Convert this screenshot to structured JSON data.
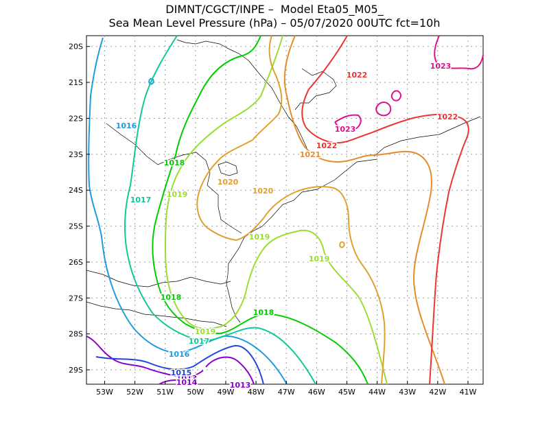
{
  "header": {
    "line1": "DIMNT/CGCT/INPE –  Model Eta05_M05_",
    "line2": "Sea Mean Level Pressure (hPa) – 05/07/2020 00UTC fct=10h"
  },
  "chart_data": {
    "type": "contour",
    "title": "Sea Mean Level Pressure (hPa)",
    "x_axis": {
      "ticks": [
        "53W",
        "52W",
        "51W",
        "50W",
        "49W",
        "48W",
        "47W",
        "46W",
        "45W",
        "44W",
        "43W",
        "42W",
        "41W"
      ],
      "range": [
        -53.6,
        -40.5
      ]
    },
    "y_axis": {
      "ticks": [
        "20S",
        "21S",
        "22S",
        "23S",
        "24S",
        "25S",
        "26S",
        "27S",
        "28S",
        "29S"
      ],
      "range": [
        -29.4,
        -19.7
      ]
    },
    "grid": true,
    "isobars": [
      {
        "value": 1013,
        "label": "1013",
        "color": "#8800cc"
      },
      {
        "value": 1014,
        "label": "1014",
        "color": "#8800cc"
      },
      {
        "value": 1015,
        "label": "1015",
        "color": "#2244dd"
      },
      {
        "value": 1016,
        "label": "1016",
        "color": "#1e9be0"
      },
      {
        "value": 1017,
        "label": "1017",
        "color": "#10c79a"
      },
      {
        "value": 1018,
        "label": "1018",
        "color": "#00cc00"
      },
      {
        "value": 1019,
        "label": "1019",
        "color": "#99dd33"
      },
      {
        "value": 1020,
        "label": "1020",
        "color": "#e0a030"
      },
      {
        "value": 1021,
        "label": "1021",
        "color": "#e88a2a"
      },
      {
        "value": 1022,
        "label": "1022",
        "color": "#ee3333"
      },
      {
        "value": 1023,
        "label": "1023",
        "color": "#e0108a"
      }
    ]
  }
}
